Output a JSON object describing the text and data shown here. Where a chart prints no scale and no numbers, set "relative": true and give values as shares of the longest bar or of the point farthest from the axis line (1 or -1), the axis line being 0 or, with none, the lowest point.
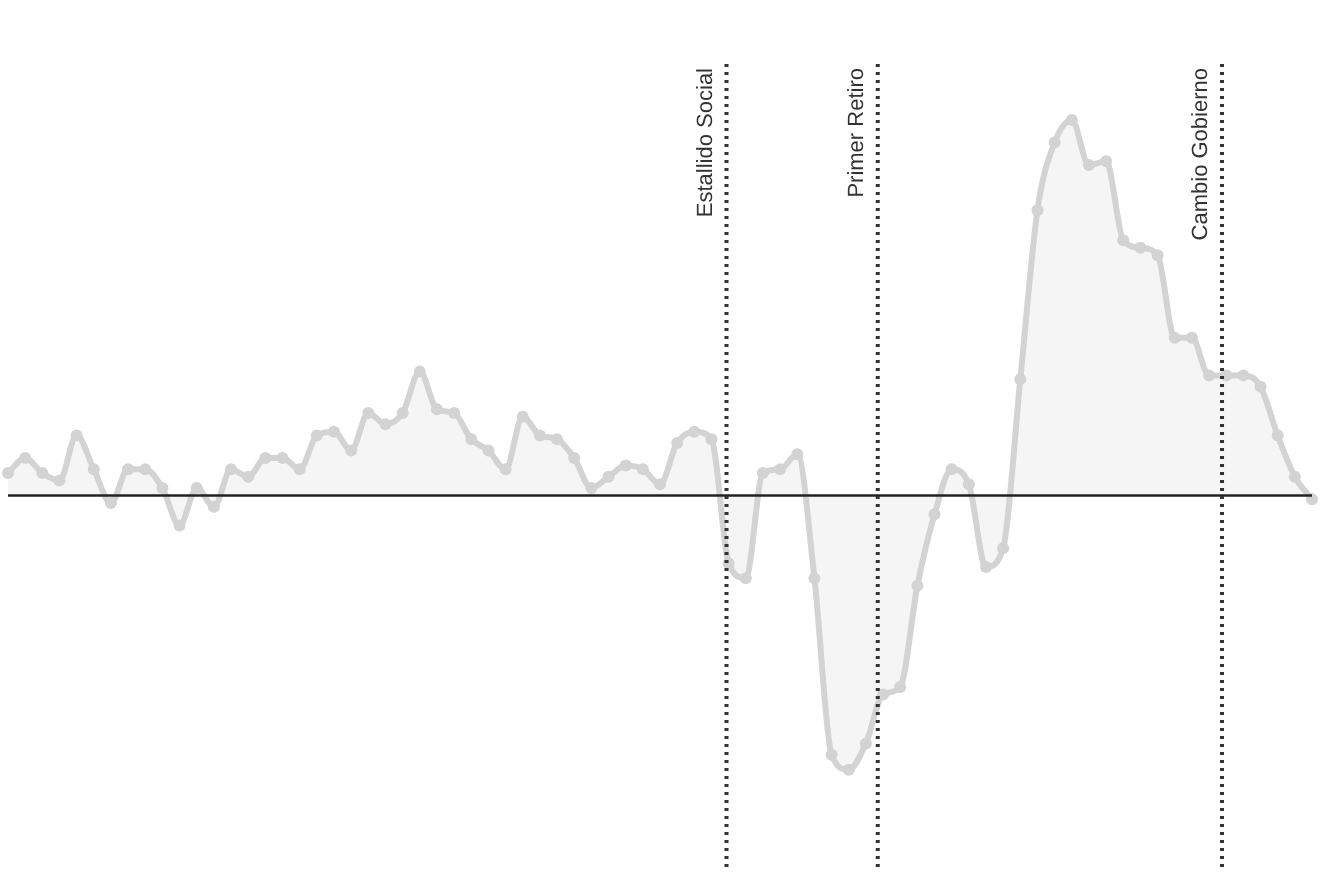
{
  "chart_data": {
    "type": "area",
    "relative": true,
    "categories": [
      null,
      null,
      null,
      null,
      null,
      null,
      null,
      null,
      null,
      null,
      null,
      null,
      null,
      null,
      null,
      null,
      null,
      null,
      null,
      null,
      null,
      null,
      null,
      null,
      null,
      null,
      null,
      null,
      null,
      null,
      null,
      null,
      null,
      null,
      null,
      null,
      null,
      null,
      null,
      null,
      null,
      null,
      null,
      null,
      null,
      null,
      null,
      null,
      null,
      null,
      null,
      null,
      null,
      null,
      null,
      null,
      null,
      null,
      null,
      null,
      null,
      null,
      null,
      null,
      null,
      null,
      null,
      null,
      null,
      null,
      null,
      null,
      null,
      null,
      null,
      null,
      null
    ],
    "series": [
      {
        "color": "#d3d3d3",
        "values": [
          0.06,
          0.1,
          0.06,
          0.04,
          0.16,
          0.07,
          -0.02,
          0.07,
          0.07,
          0.02,
          -0.08,
          0.02,
          -0.03,
          0.07,
          0.05,
          0.1,
          0.1,
          0.07,
          0.16,
          0.17,
          0.12,
          0.22,
          0.19,
          0.22,
          0.33,
          0.23,
          0.22,
          0.15,
          0.12,
          0.07,
          0.21,
          0.16,
          0.15,
          0.1,
          0.02,
          0.05,
          0.08,
          0.07,
          0.03,
          0.14,
          0.17,
          0.15,
          -0.18,
          -0.22,
          0.06,
          0.07,
          0.11,
          -0.22,
          -0.69,
          -0.73,
          -0.66,
          -0.53,
          -0.51,
          -0.24,
          -0.05,
          0.07,
          0.03,
          -0.19,
          -0.14,
          0.31,
          0.76,
          0.94,
          1,
          0.88,
          0.89,
          0.68,
          0.66,
          0.64,
          0.42,
          0.42,
          0.32,
          0.32,
          0.32,
          0.29,
          0.16,
          0.05,
          -0.01
        ]
      }
    ],
    "marker": "circle",
    "line_style": "solid",
    "legend": false,
    "annotations": [
      "Estallido Social",
      "Primer Retiro",
      "Cambio Gobierno"
    ]
  }
}
